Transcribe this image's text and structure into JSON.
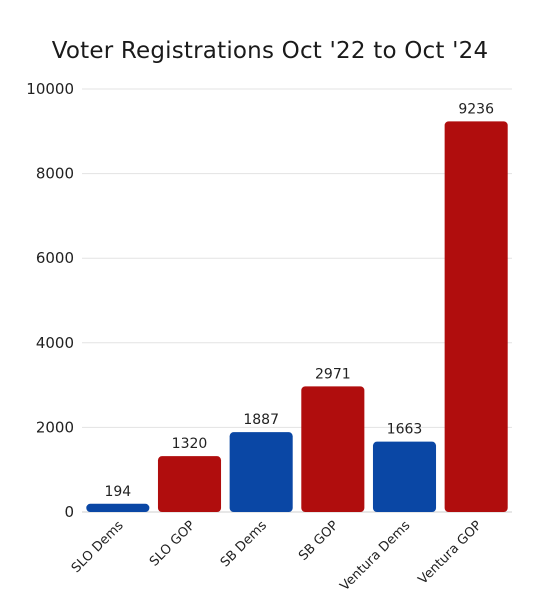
{
  "chart_data": {
    "type": "bar",
    "title": "Voter Registrations Oct '22 to Oct '24",
    "xlabel": "",
    "ylabel": "",
    "categories": [
      "SLO Dems",
      "SLO GOP",
      "SB Dems",
      "SB GOP",
      "Ventura Dems",
      "Ventura GOP"
    ],
    "values": [
      194,
      1320,
      1887,
      2971,
      1663,
      9236
    ],
    "colors": [
      "#0a47a5",
      "#b00d0d",
      "#0a47a5",
      "#b00d0d",
      "#0a47a5",
      "#b00d0d"
    ],
    "ylim": [
      0,
      10000
    ],
    "yticks": [
      0,
      2000,
      4000,
      6000,
      8000,
      10000
    ],
    "grid": true,
    "legend": "none"
  }
}
